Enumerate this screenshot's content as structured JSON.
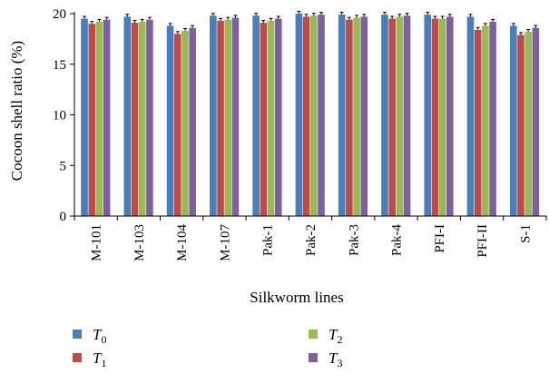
{
  "chart_data": {
    "type": "bar",
    "title": "",
    "xlabel": "Silkworm lines",
    "ylabel": "Cocoon shell ratio (%)",
    "ylim": [
      0,
      20
    ],
    "yticks": [
      "0",
      "5",
      "10",
      "15",
      "20"
    ],
    "categories": [
      "M-101",
      "M-103",
      "M-104",
      "M-107",
      "Pak-1",
      "Pak-2",
      "Pak-3",
      "Pak-4",
      "PFI-I",
      "PFI-II",
      "S-1"
    ],
    "legend_position": "bottom",
    "series": [
      {
        "name": "T",
        "subscript": "0",
        "color": "#4a7ebb",
        "values": [
          19.5,
          19.7,
          18.8,
          19.8,
          19.8,
          20.0,
          19.9,
          19.9,
          19.9,
          19.7,
          18.8
        ]
      },
      {
        "name": "T",
        "subscript": "1",
        "color": "#be4b48",
        "values": [
          19.0,
          19.1,
          18.0,
          19.3,
          19.1,
          19.7,
          19.4,
          19.5,
          19.5,
          18.4,
          17.9
        ]
      },
      {
        "name": "T",
        "subscript": "2",
        "color": "#98b954",
        "values": [
          19.2,
          19.2,
          18.3,
          19.4,
          19.3,
          19.8,
          19.6,
          19.7,
          19.5,
          18.8,
          18.2
        ]
      },
      {
        "name": "T",
        "subscript": "3",
        "color": "#7d60a0",
        "values": [
          19.4,
          19.4,
          18.6,
          19.6,
          19.5,
          19.9,
          19.7,
          19.8,
          19.7,
          19.2,
          18.6
        ]
      }
    ]
  }
}
